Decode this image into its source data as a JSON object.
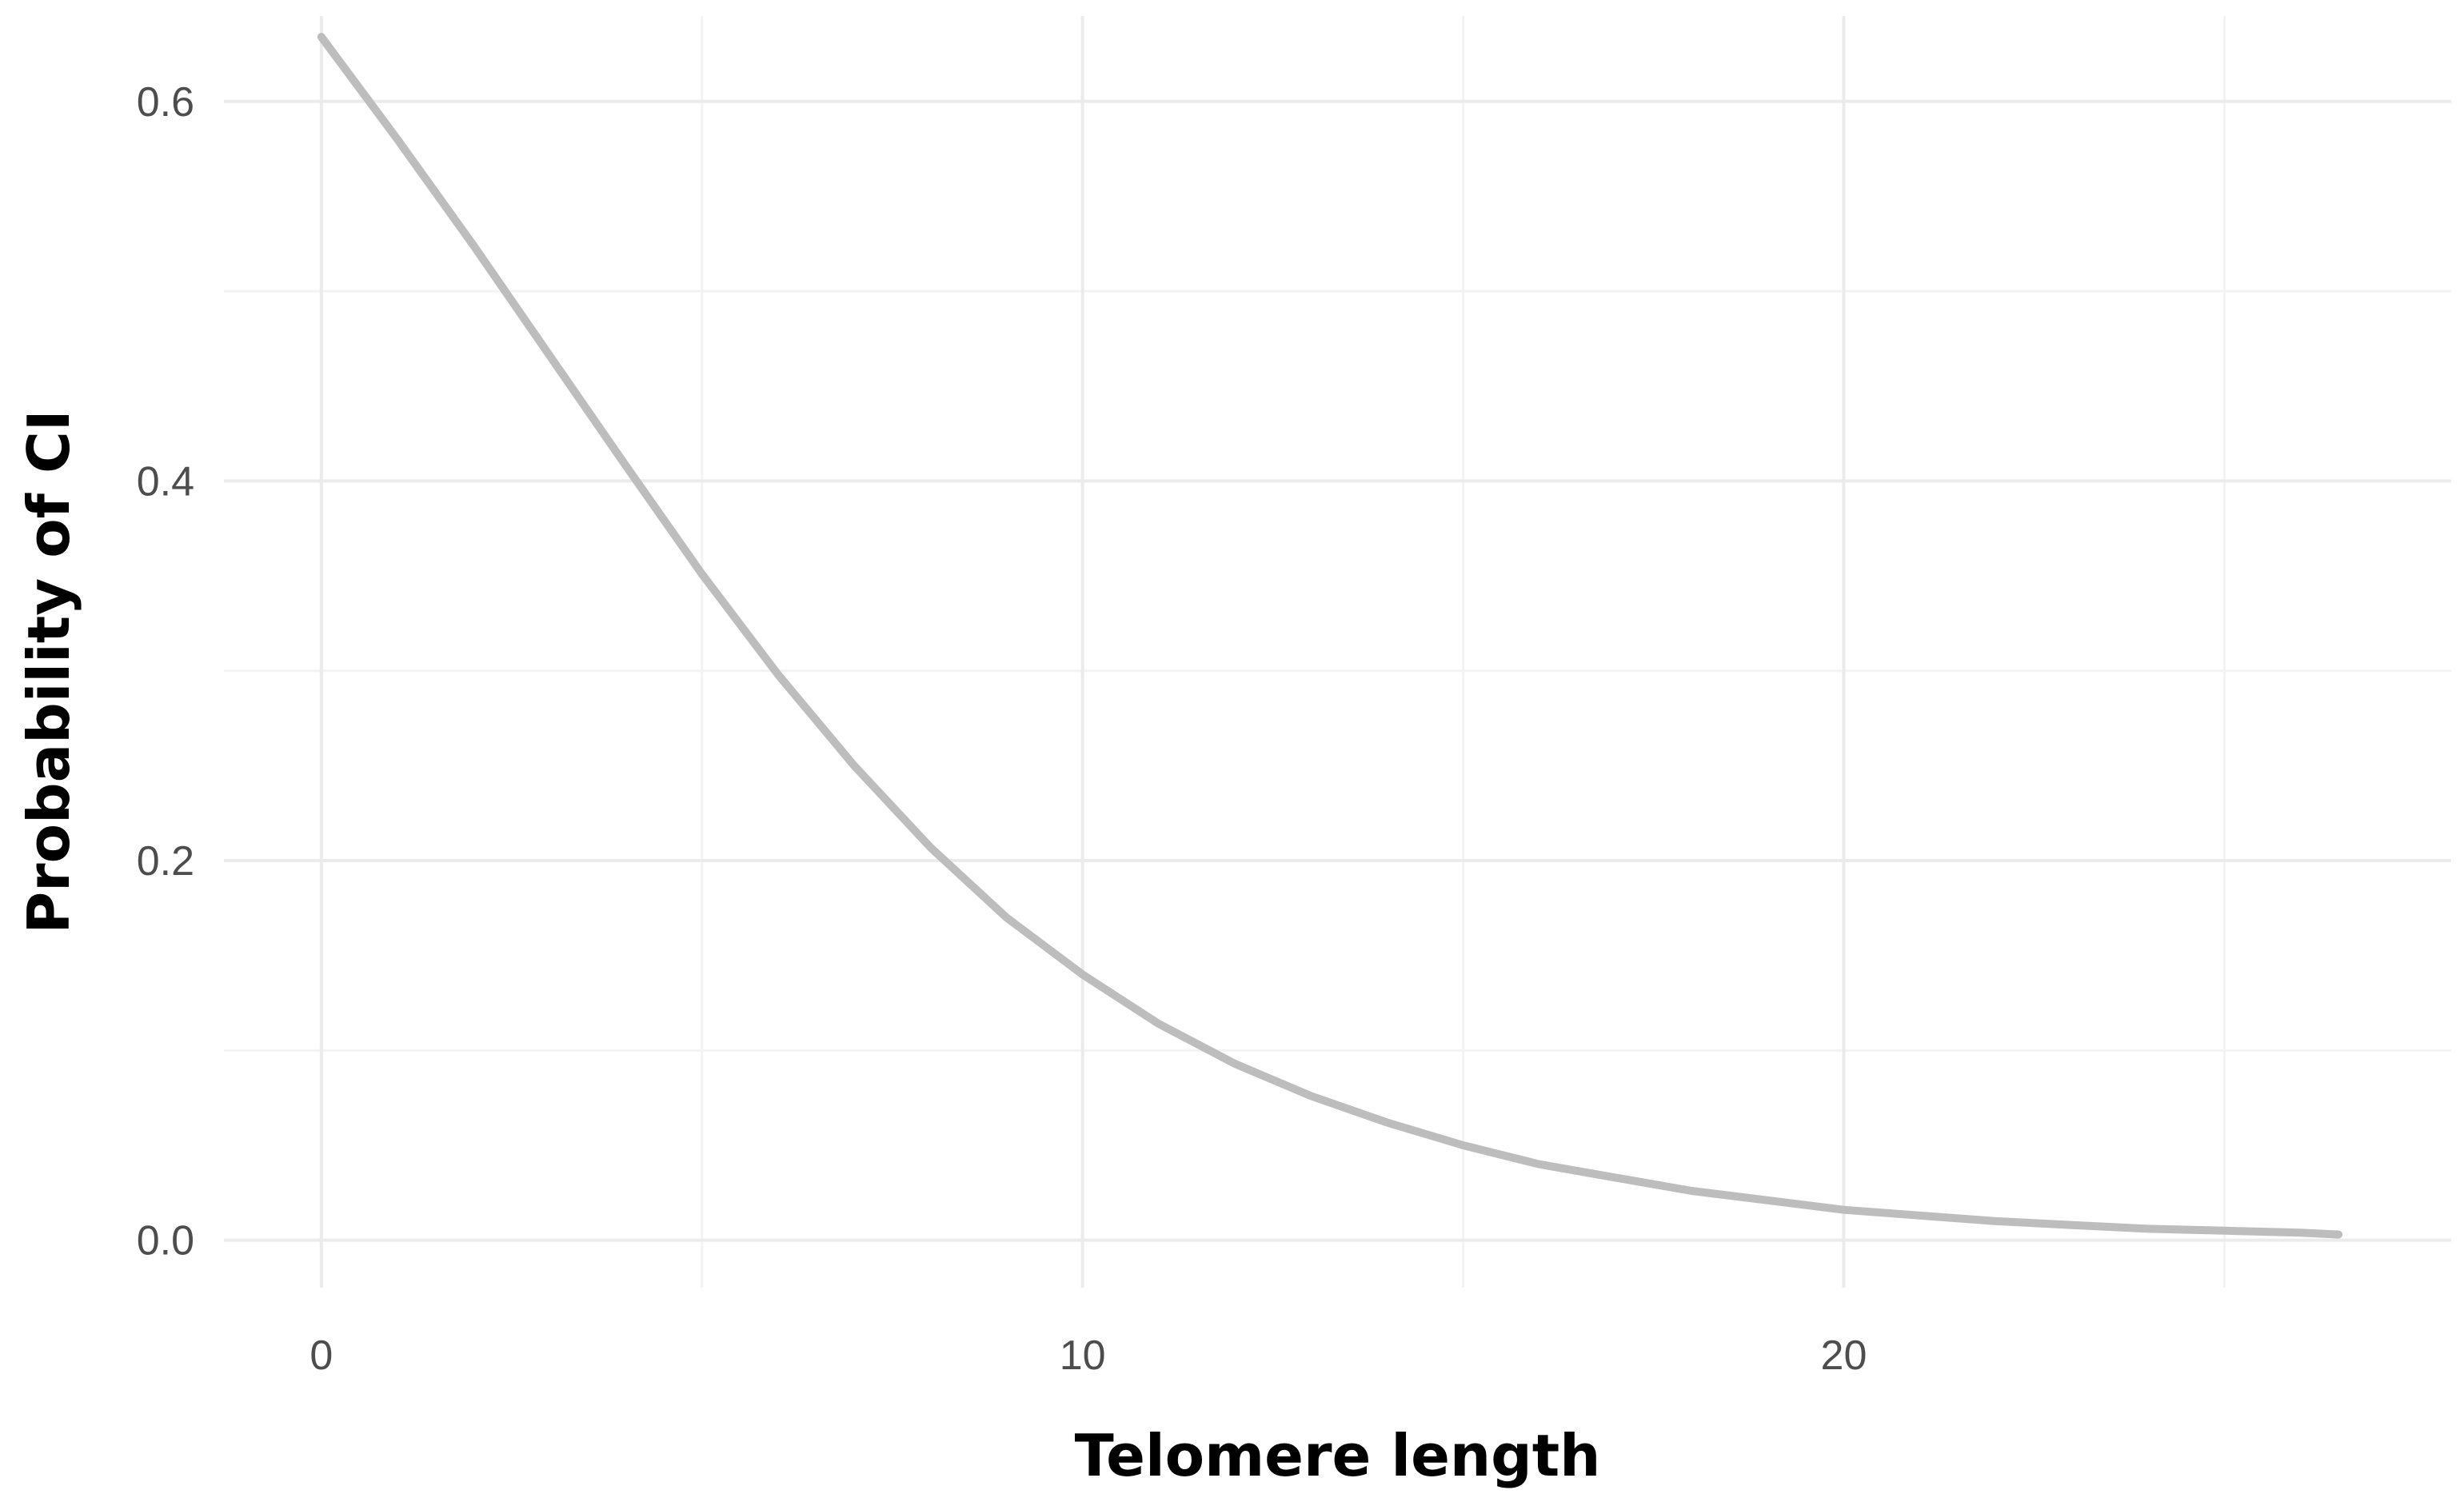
{
  "chart_data": {
    "type": "line",
    "title": "",
    "xlabel": "Telomere length",
    "ylabel": "Probability of CI",
    "xlim": [
      -1.28,
      27.98
    ],
    "ylim": [
      -0.025,
      0.645
    ],
    "x_ticks": [
      0,
      10,
      20
    ],
    "x_tick_labels": [
      "0",
      "10",
      "20"
    ],
    "x_minor_ticks": [
      5,
      15,
      25
    ],
    "y_ticks": [
      0.0,
      0.2,
      0.4,
      0.6
    ],
    "y_tick_labels": [
      "0.0",
      "0.2",
      "0.4",
      "0.6"
    ],
    "y_minor_ticks": [
      0.1,
      0.3,
      0.5
    ],
    "grid": true,
    "legend": "none",
    "line_color": "#bdbdbd",
    "series": [
      {
        "x": [
          0,
          1,
          2,
          3,
          4,
          5,
          6,
          7,
          8,
          9,
          10,
          11,
          12,
          13,
          14,
          15,
          16,
          17,
          18,
          19,
          20,
          21,
          22,
          23,
          24,
          25,
          26,
          26.5
        ],
        "values": [
          0.634,
          0.58,
          0.524,
          0.466,
          0.408,
          0.351,
          0.298,
          0.25,
          0.207,
          0.17,
          0.14,
          0.114,
          0.093,
          0.076,
          0.062,
          0.05,
          0.04,
          0.033,
          0.026,
          0.021,
          0.016,
          0.013,
          0.01,
          0.008,
          0.006,
          0.005,
          0.004,
          0.003
        ]
      }
    ]
  }
}
